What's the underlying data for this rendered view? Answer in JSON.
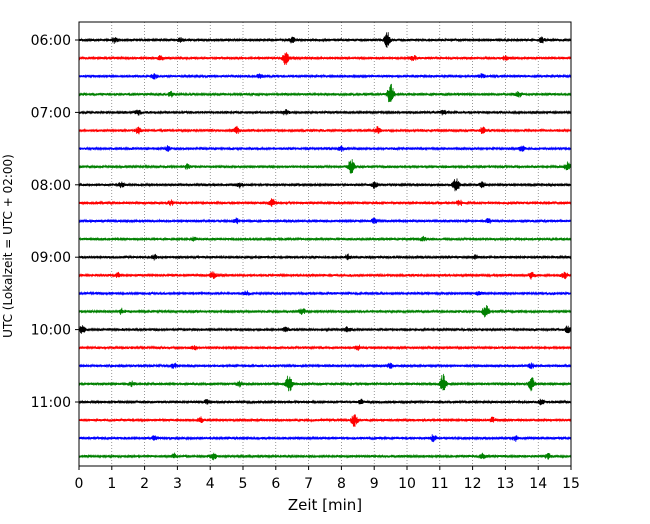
{
  "chart_data": {
    "type": "line",
    "subtype": "helicorder",
    "xlabel": "Zeit  [min]",
    "ylabel": "UTC (Lokalzeit = UTC + 02:00)",
    "xlim": [
      0,
      15
    ],
    "x_ticks": [
      "0",
      "1",
      "2",
      "3",
      "4",
      "5",
      "6",
      "7",
      "8",
      "9",
      "10",
      "11",
      "12",
      "13",
      "14",
      "15"
    ],
    "y_tick_labels": [
      "06:00",
      "07:00",
      "08:00",
      "09:00",
      "10:00",
      "11:00"
    ],
    "vertical_grid": "dotted, every 1 min",
    "line_interval_min": 15,
    "color_cycle": [
      "#000000",
      "#ff0000",
      "#0000ff",
      "#008000"
    ],
    "traces": [
      {
        "start": "06:00",
        "events": [
          {
            "t": 9.4,
            "a": 0.9
          },
          {
            "t": 1.1,
            "a": 0.35
          },
          {
            "t": 3.1,
            "a": 0.3
          },
          {
            "t": 6.5,
            "a": 0.3
          },
          {
            "t": 14.1,
            "a": 0.3
          }
        ]
      },
      {
        "start": "06:15",
        "events": [
          {
            "t": 6.3,
            "a": 0.8
          },
          {
            "t": 2.5,
            "a": 0.3
          },
          {
            "t": 10.2,
            "a": 0.3
          },
          {
            "t": 13.0,
            "a": 0.25
          }
        ]
      },
      {
        "start": "06:30",
        "events": [
          {
            "t": 2.3,
            "a": 0.3
          },
          {
            "t": 5.5,
            "a": 0.3
          },
          {
            "t": 12.3,
            "a": 0.3
          }
        ]
      },
      {
        "start": "06:45",
        "events": [
          {
            "t": 9.5,
            "a": 1.4
          },
          {
            "t": 2.8,
            "a": 0.3
          },
          {
            "t": 13.4,
            "a": 0.3
          }
        ]
      },
      {
        "start": "07:00",
        "events": [
          {
            "t": 1.8,
            "a": 0.3
          },
          {
            "t": 6.3,
            "a": 0.3
          },
          {
            "t": 11.1,
            "a": 0.3
          }
        ]
      },
      {
        "start": "07:15",
        "events": [
          {
            "t": 1.8,
            "a": 0.4
          },
          {
            "t": 4.8,
            "a": 0.45
          },
          {
            "t": 9.1,
            "a": 0.45
          },
          {
            "t": 12.3,
            "a": 0.45
          }
        ]
      },
      {
        "start": "07:30",
        "events": [
          {
            "t": 2.7,
            "a": 0.3
          },
          {
            "t": 8.0,
            "a": 0.3
          },
          {
            "t": 13.5,
            "a": 0.3
          }
        ]
      },
      {
        "start": "07:45",
        "events": [
          {
            "t": 8.3,
            "a": 0.9
          },
          {
            "t": 14.9,
            "a": 0.5
          },
          {
            "t": 3.3,
            "a": 0.3
          }
        ]
      },
      {
        "start": "08:00",
        "events": [
          {
            "t": 11.5,
            "a": 0.9
          },
          {
            "t": 9.0,
            "a": 0.4
          },
          {
            "t": 1.3,
            "a": 0.35
          },
          {
            "t": 4.9,
            "a": 0.3
          },
          {
            "t": 12.3,
            "a": 0.35
          }
        ]
      },
      {
        "start": "08:15",
        "events": [
          {
            "t": 5.9,
            "a": 0.5
          },
          {
            "t": 2.8,
            "a": 0.3
          },
          {
            "t": 11.6,
            "a": 0.3
          }
        ]
      },
      {
        "start": "08:30",
        "events": [
          {
            "t": 9.0,
            "a": 0.35
          },
          {
            "t": 4.8,
            "a": 0.3
          },
          {
            "t": 12.5,
            "a": 0.3
          }
        ]
      },
      {
        "start": "08:45",
        "events": [
          {
            "t": 3.5,
            "a": 0.2
          },
          {
            "t": 10.5,
            "a": 0.25
          }
        ]
      },
      {
        "start": "09:00",
        "events": [
          {
            "t": 8.2,
            "a": 0.35
          },
          {
            "t": 2.3,
            "a": 0.3
          },
          {
            "t": 12.1,
            "a": 0.3
          }
        ]
      },
      {
        "start": "09:15",
        "events": [
          {
            "t": 4.1,
            "a": 0.45
          },
          {
            "t": 13.8,
            "a": 0.4
          },
          {
            "t": 14.8,
            "a": 0.4
          },
          {
            "t": 1.2,
            "a": 0.3
          }
        ]
      },
      {
        "start": "09:30",
        "events": [
          {
            "t": 12.2,
            "a": 0.3
          },
          {
            "t": 5.1,
            "a": 0.3
          }
        ]
      },
      {
        "start": "09:45",
        "events": [
          {
            "t": 12.4,
            "a": 0.8
          },
          {
            "t": 6.8,
            "a": 0.4
          },
          {
            "t": 1.3,
            "a": 0.3
          }
        ]
      },
      {
        "start": "10:00",
        "events": [
          {
            "t": 0.1,
            "a": 0.45
          },
          {
            "t": 14.9,
            "a": 0.4
          },
          {
            "t": 6.3,
            "a": 0.3
          },
          {
            "t": 8.2,
            "a": 0.3
          }
        ]
      },
      {
        "start": "10:15",
        "events": [
          {
            "t": 8.5,
            "a": 0.3
          },
          {
            "t": 3.5,
            "a": 0.25
          }
        ]
      },
      {
        "start": "10:30",
        "events": [
          {
            "t": 9.5,
            "a": 0.3
          },
          {
            "t": 2.9,
            "a": 0.3
          },
          {
            "t": 13.8,
            "a": 0.3
          }
        ]
      },
      {
        "start": "10:45",
        "events": [
          {
            "t": 6.4,
            "a": 1.2
          },
          {
            "t": 11.1,
            "a": 1.2
          },
          {
            "t": 13.8,
            "a": 0.8
          },
          {
            "t": 1.6,
            "a": 0.3
          },
          {
            "t": 4.9,
            "a": 0.3
          }
        ]
      },
      {
        "start": "11:00",
        "events": [
          {
            "t": 14.1,
            "a": 0.3
          },
          {
            "t": 3.9,
            "a": 0.3
          },
          {
            "t": 8.6,
            "a": 0.3
          }
        ]
      },
      {
        "start": "11:15",
        "events": [
          {
            "t": 8.4,
            "a": 0.8
          },
          {
            "t": 3.7,
            "a": 0.3
          },
          {
            "t": 12.6,
            "a": 0.3
          }
        ]
      },
      {
        "start": "11:30",
        "events": [
          {
            "t": 10.8,
            "a": 0.4
          },
          {
            "t": 2.3,
            "a": 0.3
          },
          {
            "t": 13.3,
            "a": 0.3
          }
        ]
      },
      {
        "start": "11:45",
        "events": [
          {
            "t": 4.1,
            "a": 0.4
          },
          {
            "t": 2.9,
            "a": 0.3
          },
          {
            "t": 12.3,
            "a": 0.3
          },
          {
            "t": 14.3,
            "a": 0.3
          }
        ]
      }
    ]
  }
}
